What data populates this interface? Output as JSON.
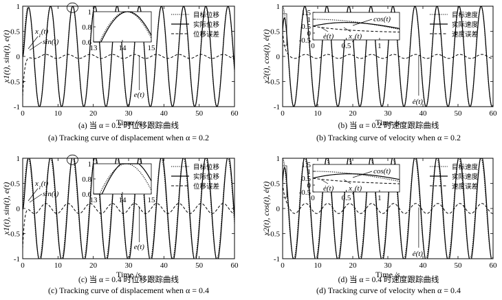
{
  "chart_data": [
    {
      "id": "a",
      "type": "line",
      "quantity": "displacement",
      "alpha": 0.2,
      "xlabel": "Time /s",
      "ylabel": "x1(t), sin(t), e(t)",
      "xlim": [
        0,
        60
      ],
      "ylim": [
        -1,
        1
      ],
      "xticks": [
        0,
        10,
        20,
        30,
        40,
        50,
        60
      ],
      "yticks": [
        -1,
        -0.5,
        0,
        0.5,
        1
      ],
      "series": [
        {
          "name": "目标位移",
          "style": "dotted",
          "function": "sin(t)",
          "amplitude": 1
        },
        {
          "name": "实际位移",
          "style": "solid",
          "function": "x1(t)",
          "amplitude": 1,
          "lag": 0.05
        },
        {
          "name": "位移误差",
          "style": "dashed",
          "function": "e(t)",
          "amplitude": 0.04,
          "initial": -0.8
        }
      ],
      "inset": {
        "xlim": [
          13,
          15
        ],
        "ylim": [
          0.6,
          1
        ],
        "xticks": [
          13,
          14,
          15
        ],
        "yticks": [
          0.6,
          0.8,
          1
        ]
      },
      "annotations": [
        "x1(t)",
        "sin(t)",
        "e(t)"
      ],
      "caption_cn": "(a) 当 α = 0.2 时位移跟踪曲线",
      "caption_en": "(a) Tracking curve of displacement when  α = 0.2"
    },
    {
      "id": "b",
      "type": "line",
      "quantity": "velocity",
      "alpha": 0.2,
      "xlabel": "Time /s",
      "ylabel": "x2(t), cos(t), ė(t)",
      "xlim": [
        0,
        60
      ],
      "ylim": [
        -1,
        1
      ],
      "xticks": [
        0,
        10,
        20,
        30,
        40,
        50,
        60
      ],
      "yticks": [
        -1,
        -0.5,
        0,
        0.5,
        1
      ],
      "series": [
        {
          "name": "目标速度",
          "style": "dotted",
          "function": "cos(t)",
          "amplitude": 1
        },
        {
          "name": "实际速度",
          "style": "solid",
          "function": "x2(t)",
          "amplitude": 1,
          "lag": 0.05
        },
        {
          "name": "速度误差",
          "style": "dashed",
          "function": "ė(t)",
          "amplitude": 0.04,
          "initial": 0.5
        }
      ],
      "inset": {
        "xlim": [
          0,
          1.3
        ],
        "ylim": [
          -0.5,
          1.5
        ],
        "xticks": [
          0,
          0.5,
          1
        ],
        "yticks": [
          -0.5,
          0,
          0.5,
          1,
          1.5
        ]
      },
      "annotations": [
        "cos(t)",
        "ė(t)",
        "x2(t)",
        "ė(t)"
      ],
      "caption_cn": "(b) 当 α = 0.2 时速度跟踪曲线",
      "caption_en": "(b) Tracking curve of velocity when  α = 0.2"
    },
    {
      "id": "c",
      "type": "line",
      "quantity": "displacement",
      "alpha": 0.4,
      "xlabel": "Time /s",
      "ylabel": "x1(t), sin(t), e(t)",
      "xlim": [
        0,
        60
      ],
      "ylim": [
        -1,
        1
      ],
      "xticks": [
        0,
        10,
        20,
        30,
        40,
        50,
        60
      ],
      "yticks": [
        -1,
        -0.5,
        0,
        0.5,
        1
      ],
      "series": [
        {
          "name": "目标位移",
          "style": "dotted",
          "function": "sin(t)",
          "amplitude": 1
        },
        {
          "name": "实际位移",
          "style": "solid",
          "function": "x1(t)",
          "amplitude": 1.05,
          "lag": 0.12
        },
        {
          "name": "位移误差",
          "style": "dashed",
          "function": "e(t)",
          "amplitude": 0.1,
          "initial": -0.8
        }
      ],
      "inset": {
        "xlim": [
          13,
          15
        ],
        "ylim": [
          0.6,
          1
        ],
        "xticks": [
          13,
          14,
          15
        ],
        "yticks": [
          0.6,
          0.8,
          1
        ]
      },
      "annotations": [
        "x1(t)",
        "sin(t)",
        "e(t)"
      ],
      "caption_cn": "(c) 当 α = 0.4 时位移跟踪曲线",
      "caption_en": "(c) Tracking curve of displacement when  α = 0.4"
    },
    {
      "id": "d",
      "type": "line",
      "quantity": "velocity",
      "alpha": 0.4,
      "xlabel": "Time /s",
      "ylabel": "x2(t), cos(t), ė(t)",
      "xlim": [
        0,
        60
      ],
      "ylim": [
        -1,
        1
      ],
      "xticks": [
        0,
        10,
        20,
        30,
        40,
        50,
        60
      ],
      "yticks": [
        -1,
        -0.5,
        0,
        0.5,
        1
      ],
      "series": [
        {
          "name": "目标速度",
          "style": "dotted",
          "function": "cos(t)",
          "amplitude": 1
        },
        {
          "name": "实际速度",
          "style": "solid",
          "function": "x2(t)",
          "amplitude": 1.05,
          "lag": 0.12
        },
        {
          "name": "速度误差",
          "style": "dashed",
          "function": "ė(t)",
          "amplitude": 0.1,
          "initial": 0.5
        }
      ],
      "inset": {
        "xlim": [
          0,
          1.3
        ],
        "ylim": [
          -0.5,
          1.5
        ],
        "xticks": [
          0,
          0.5,
          1
        ],
        "yticks": [
          -0.5,
          0,
          0.5,
          1,
          1.5
        ]
      },
      "annotations": [
        "cos(t)",
        "ė(t)",
        "x2(t)",
        "ė(t)"
      ],
      "caption_cn": "(d) 当 α = 0.4 时速度跟踪曲线",
      "caption_en": "(d) Tracking curve of velocity when  α = 0.4"
    }
  ]
}
